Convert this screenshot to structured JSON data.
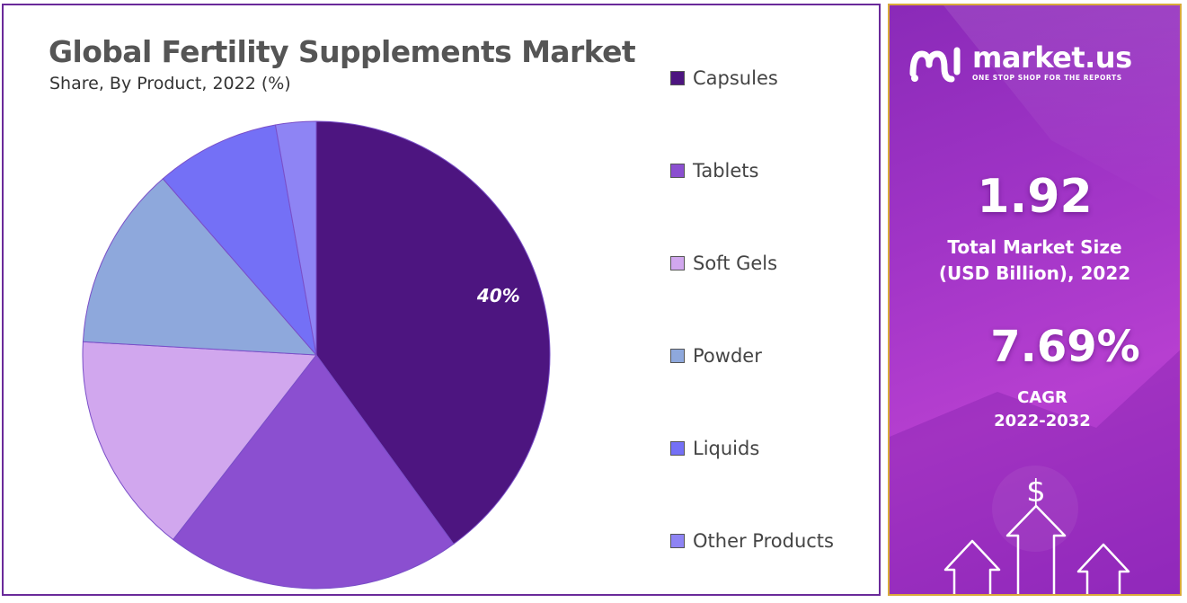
{
  "chart_data": {
    "type": "pie",
    "title": "Global Fertility Supplements Market",
    "subtitle": "Share, By Product, 2022 (%)",
    "categories": [
      "Capsules",
      "Tablets",
      "Soft Gels",
      "Powder",
      "Liquids",
      "Other Products"
    ],
    "values": [
      40,
      20.5,
      15.4,
      12.7,
      8.6,
      2.8
    ],
    "colors": [
      "#4d1580",
      "#8b4fd0",
      "#d1a7ee",
      "#8ea8dc",
      "#7470f6",
      "#8e84f4"
    ],
    "data_labels": [
      "40%",
      "",
      "",
      "",
      "",
      ""
    ],
    "legend_position": "right"
  },
  "side_panel": {
    "brand_name": "market.us",
    "brand_tagline": "ONE STOP SHOP FOR THE REPORTS",
    "market_size_value": "1.92",
    "market_size_label_line1": "Total Market Size",
    "market_size_label_line2": "(USD Billion), 2022",
    "cagr_value": "7.69%",
    "cagr_label_line1": "CAGR",
    "cagr_label_line2": "2022-2032",
    "dollar_symbol": "$"
  },
  "colors": {
    "chart_border": "#6a2a9a",
    "side_border": "#d9a93a",
    "side_bg": "#a034c6"
  }
}
